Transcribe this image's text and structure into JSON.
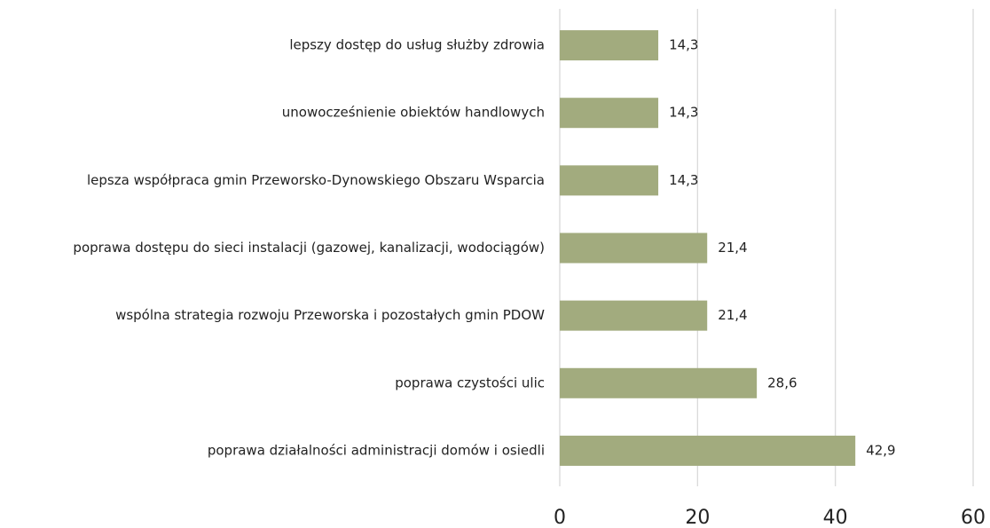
{
  "chart_data": {
    "type": "hbar",
    "categories": [
      "lepszy dostęp do usług służby zdrowia",
      "unowocześnienie obiektów handlowych",
      "lepsza współpraca gmin Przeworsko-Dynowskiego Obszaru Wsparcia",
      "poprawa dostępu do sieci instalacji (gazowej, kanalizacji, wodociągów)",
      "wspólna strategia rozwoju Przeworska i pozostałych gmin PDOW",
      "poprawa czystości ulic",
      "poprawa działalności administracji domów i osiedli"
    ],
    "values": [
      14.3,
      14.3,
      14.3,
      21.4,
      21.4,
      28.6,
      42.9
    ],
    "value_labels": [
      "14,3",
      "14,3",
      "14,3",
      "21,4",
      "21,4",
      "28,6",
      "42,9"
    ],
    "color": "#a2ab7e",
    "xlim": [
      0,
      60
    ],
    "xticks": [
      0,
      20,
      40,
      60
    ],
    "grid": true
  }
}
